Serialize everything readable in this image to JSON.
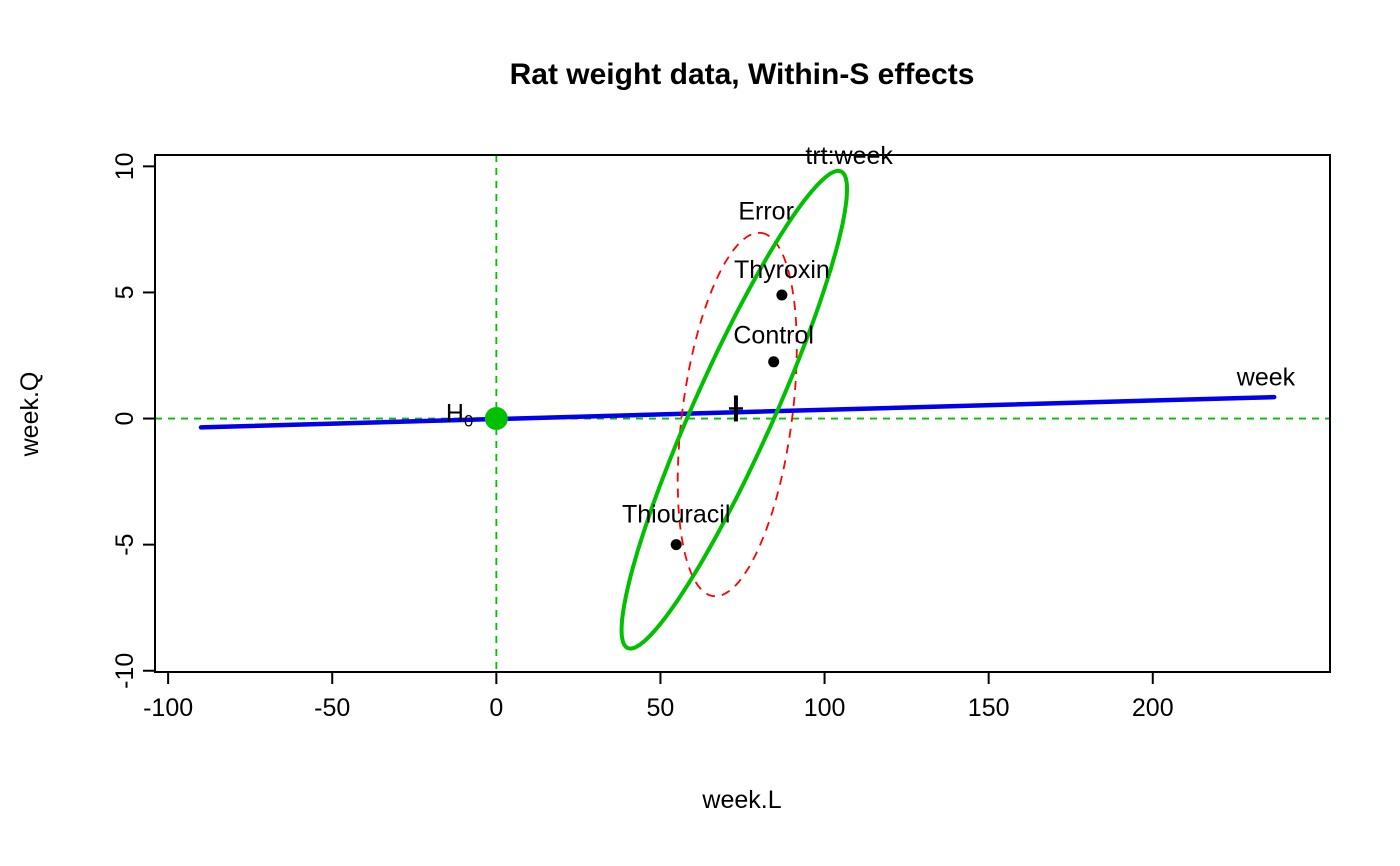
{
  "chart_data": {
    "type": "scatter",
    "subtype": "hypothesis-error-plot",
    "title": "Rat weight data, Within-S effects",
    "xlabel": "week.L",
    "ylabel": "week.Q",
    "xlim": [
      -104,
      254
    ],
    "ylim": [
      -10.05,
      10.45
    ],
    "xticks": [
      -100,
      -50,
      0,
      50,
      100,
      150,
      200
    ],
    "yticks": [
      -10,
      -5,
      0,
      5,
      10
    ],
    "grid": false,
    "legend": "none",
    "colors": {
      "hypothesis_green": "#00C000",
      "error_red": "#FF0000",
      "week_blue": "#0000EE",
      "points_black": "#000000"
    },
    "reference_lines": [
      {
        "orientation": "vertical",
        "at": 0,
        "style": "dashed",
        "color": "#00C000"
      },
      {
        "orientation": "horizontal",
        "at": 0,
        "style": "dashed",
        "color": "#00C000"
      }
    ],
    "h0_marker": {
      "x": 0,
      "y": 0,
      "label": "H",
      "label_sub": "0",
      "label_x": -7,
      "label_y": -0.12,
      "color": "#00C000"
    },
    "centroid_marker": {
      "x": 73,
      "y": 0.4,
      "shape": "plus",
      "color": "#000000"
    },
    "week_line": {
      "label": "week",
      "x1": -90,
      "y1": -0.35,
      "x2": 237,
      "y2": 0.85,
      "color": "#0000EE"
    },
    "ellipses": [
      {
        "name": "Error",
        "center": [
          73.4,
          0.16
        ],
        "axis1": [
          7.3,
          7.2
        ],
        "axis2": [
          16.6,
          -0.28
        ],
        "color": "#FF0000",
        "dashed": true,
        "width": 1.8
      },
      {
        "name": "trt:week",
        "center": [
          72.5,
          0.35
        ],
        "axis1": [
          32.5,
          9.45
        ],
        "axis2": [
          11.1,
          -0.64
        ],
        "color": "#00C000",
        "dashed": false,
        "width": 4
      }
    ],
    "points": [
      {
        "label": "Thyroxin",
        "x": 87,
        "y": 4.9
      },
      {
        "label": "Control",
        "x": 84.5,
        "y": 2.25
      },
      {
        "label": "Thiouracil",
        "x": 54.8,
        "y": -5.0
      }
    ],
    "annotations": [
      {
        "text": "trt:week",
        "x": 107.5,
        "y": 10.1,
        "color": "#00C000"
      },
      {
        "text": "Error",
        "x": 82.2,
        "y": 7.9,
        "color": "#FF0000"
      },
      {
        "text": "Thyroxin",
        "x": 87,
        "y": 5.58,
        "color": "#000000"
      },
      {
        "text": "Control",
        "x": 84.5,
        "y": 2.98,
        "color": "#000000"
      },
      {
        "text": "Thiouracil",
        "x": 54.8,
        "y": -4.12,
        "color": "#000000"
      },
      {
        "text": "week",
        "x": 234.5,
        "y": 1.32,
        "color": "#0000EE"
      }
    ]
  }
}
